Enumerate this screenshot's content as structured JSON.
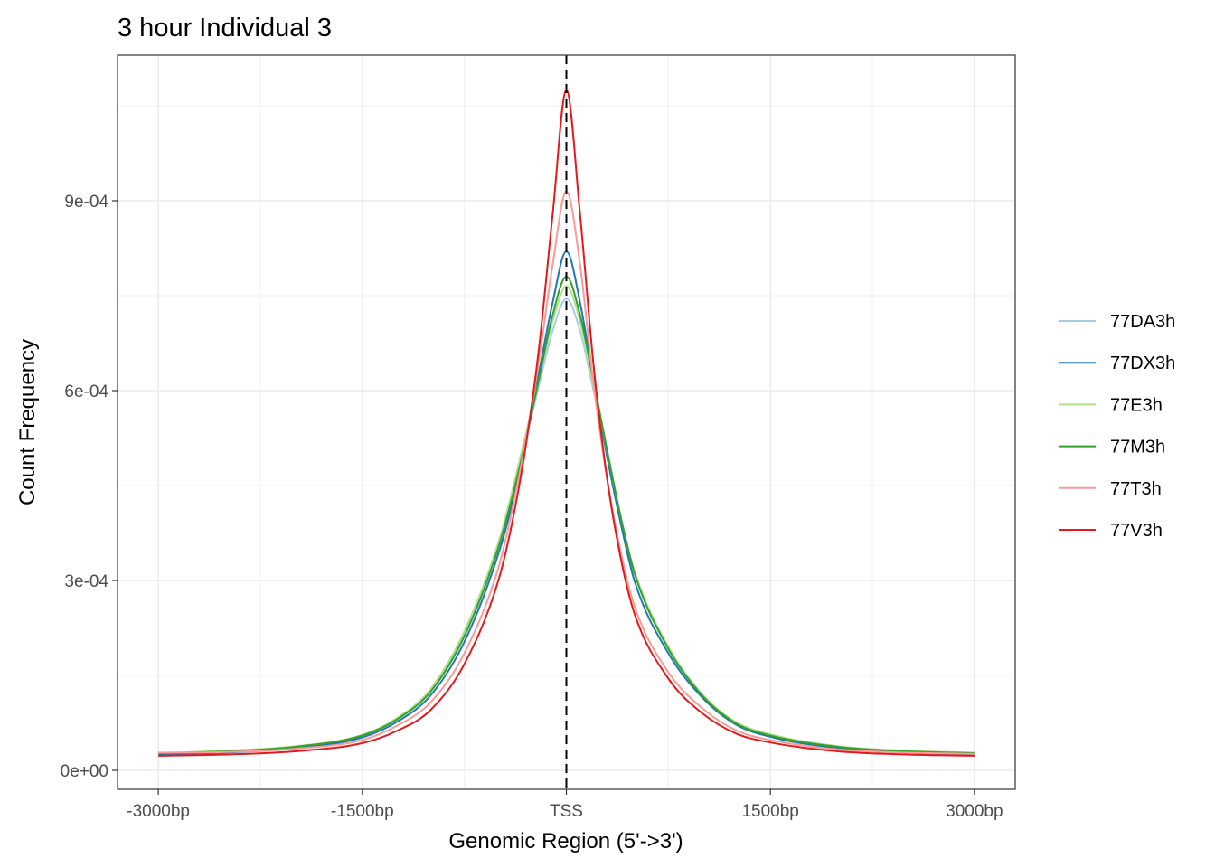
{
  "chart_data": {
    "type": "line",
    "title": "3 hour Individual 3",
    "xlabel": "Genomic Region (5'->3')",
    "ylabel": "Count Frequency",
    "xlim": [
      -3300,
      3300
    ],
    "ylim": [
      -3e-05,
      0.00113
    ],
    "x_ticks": [
      {
        "value": -3000,
        "label": "-3000bp"
      },
      {
        "value": -1500,
        "label": "-1500bp"
      },
      {
        "value": 0,
        "label": "TSS"
      },
      {
        "value": 1500,
        "label": "1500bp"
      },
      {
        "value": 3000,
        "label": "3000bp"
      }
    ],
    "y_ticks": [
      {
        "value": 0,
        "label": "0e+00"
      },
      {
        "value": 0.0003,
        "label": "3e-04"
      },
      {
        "value": 0.0006,
        "label": "6e-04"
      },
      {
        "value": 0.0009,
        "label": "9e-04"
      }
    ],
    "reference_line": {
      "x": 0,
      "style": "dashed"
    },
    "grid": true,
    "legend_position": "right",
    "x": [
      -3000,
      -2500,
      -2000,
      -1500,
      -1250,
      -1000,
      -750,
      -500,
      -400,
      -300,
      -200,
      -100,
      0,
      100,
      200,
      300,
      400,
      500,
      750,
      1000,
      1250,
      1500,
      2000,
      2500,
      3000
    ],
    "series": [
      {
        "name": "77DA3h",
        "color": "#a6cee3",
        "values": [
          2.7e-05,
          3e-05,
          3.7e-05,
          5.5e-05,
          8e-05,
          0.000125,
          0.000215,
          0.000355,
          0.00043,
          0.00052,
          0.00061,
          0.000695,
          0.000745,
          0.000695,
          0.0006,
          0.0005,
          0.0004,
          0.000315,
          0.000195,
          0.00012,
          7.5e-05,
          5.6e-05,
          3.8e-05,
          3e-05,
          2.7e-05
        ]
      },
      {
        "name": "77DX3h",
        "color": "#1f78b4",
        "values": [
          2.5e-05,
          2.8e-05,
          3.5e-05,
          5.2e-05,
          7.6e-05,
          0.000118,
          0.000203,
          0.000342,
          0.00042,
          0.00052,
          0.00063,
          0.00074,
          0.00082,
          0.00074,
          0.000615,
          0.000495,
          0.00039,
          0.0003,
          0.000185,
          0.000115,
          7.2e-05,
          5.3e-05,
          3.5e-05,
          2.8e-05,
          2.5e-05
        ]
      },
      {
        "name": "77E3h",
        "color": "#b2df8a",
        "values": [
          2.7e-05,
          3.1e-05,
          3.8e-05,
          5.6e-05,
          8.2e-05,
          0.000128,
          0.00022,
          0.00036,
          0.00044,
          0.00053,
          0.00062,
          0.00071,
          0.000765,
          0.00071,
          0.00061,
          0.000505,
          0.0004,
          0.000315,
          0.000195,
          0.00012,
          7.6e-05,
          5.7e-05,
          3.8e-05,
          3.1e-05,
          2.8e-05
        ]
      },
      {
        "name": "77M3h",
        "color": "#33a02c",
        "values": [
          2.7e-05,
          3e-05,
          3.7e-05,
          5.5e-05,
          8e-05,
          0.000124,
          0.000212,
          0.000352,
          0.00043,
          0.00052,
          0.00062,
          0.00072,
          0.00078,
          0.00072,
          0.000615,
          0.000505,
          0.0004,
          0.000312,
          0.000192,
          0.000118,
          7.4e-05,
          5.5e-05,
          3.7e-05,
          3e-05,
          2.7e-05
        ]
      },
      {
        "name": "77T3h",
        "color": "#fb9a99",
        "values": [
          2.8e-05,
          2.9e-05,
          3.4e-05,
          4.8e-05,
          7e-05,
          0.000107,
          0.000185,
          0.00032,
          0.00041,
          0.00052,
          0.00065,
          0.0008,
          0.000915,
          0.0008,
          0.00061,
          0.00046,
          0.000345,
          0.00026,
          0.000155,
          9.8e-05,
          6.3e-05,
          4.8e-05,
          3.3e-05,
          2.8e-05,
          2.6e-05
        ]
      },
      {
        "name": "77V3h",
        "color": "#e31a1c",
        "values": [
          2.3e-05,
          2.5e-05,
          3e-05,
          4.3e-05,
          6.2e-05,
          9.5e-05,
          0.000168,
          0.0003,
          0.00039,
          0.00051,
          0.00067,
          0.00088,
          0.001075,
          0.00088,
          0.00064,
          0.00046,
          0.000335,
          0.000248,
          0.000145,
          9e-05,
          5.8e-05,
          4.4e-05,
          3e-05,
          2.5e-05,
          2.3e-05
        ]
      }
    ]
  }
}
